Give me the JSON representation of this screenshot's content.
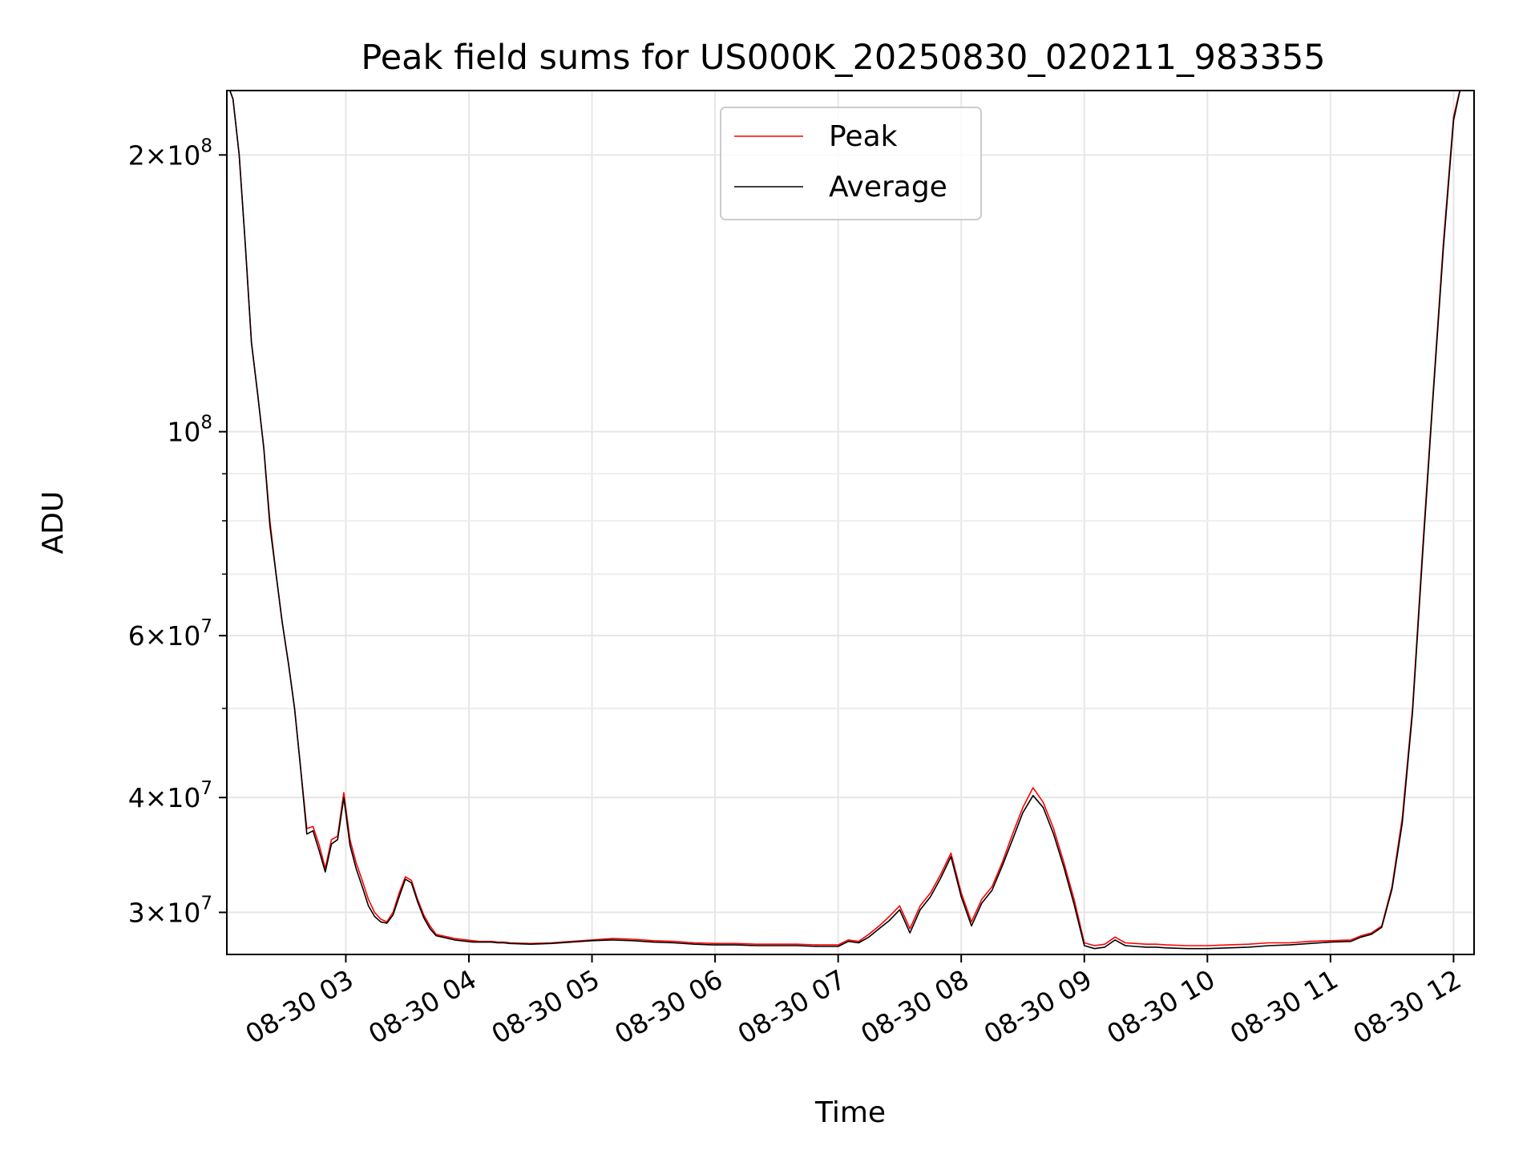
{
  "chart_data": {
    "type": "line",
    "title": "Peak field sums for US000K_20250830_020211_983355",
    "xlabel": "Time",
    "ylabel": "ADU",
    "x_axis": {
      "kind": "datetime",
      "range": [
        "2025-08-30 02:02",
        "2025-08-30 12:10"
      ],
      "ticks": [
        "2025-08-30 03:00",
        "2025-08-30 04:00",
        "2025-08-30 05:00",
        "2025-08-30 06:00",
        "2025-08-30 07:00",
        "2025-08-30 08:00",
        "2025-08-30 09:00",
        "2025-08-30 10:00",
        "2025-08-30 11:00",
        "2025-08-30 12:00"
      ],
      "tick_labels": [
        "08-30 03",
        "08-30 04",
        "08-30 05",
        "08-30 06",
        "08-30 07",
        "08-30 08",
        "08-30 09",
        "08-30 10",
        "08-30 11",
        "08-30 12"
      ]
    },
    "y_axis": {
      "scale": "log",
      "range": [
        27000000,
        235000000
      ],
      "ticks": [
        30000000,
        40000000,
        60000000,
        100000000,
        200000000
      ],
      "tick_labels": [
        {
          "mantissa": "3",
          "exp": "7"
        },
        {
          "mantissa": "4",
          "exp": "7"
        },
        {
          "mantissa": "6",
          "exp": "7"
        },
        {
          "mantissa": "",
          "exp": "8"
        },
        {
          "mantissa": "2",
          "exp": "8"
        }
      ],
      "minor_ticks": [
        50000000,
        70000000,
        80000000,
        90000000
      ]
    },
    "grid": true,
    "legend": {
      "placement": "upper-center"
    },
    "series": [
      {
        "name": "Peak",
        "color": "#ff0000",
        "x": [
          "2025-08-30 02:02",
          "2025-08-30 02:05",
          "2025-08-30 02:08",
          "2025-08-30 02:11",
          "2025-08-30 02:14",
          "2025-08-30 02:17",
          "2025-08-30 02:20",
          "2025-08-30 02:23",
          "2025-08-30 02:26",
          "2025-08-30 02:29",
          "2025-08-30 02:32",
          "2025-08-30 02:35",
          "2025-08-30 02:38",
          "2025-08-30 02:41",
          "2025-08-30 02:44",
          "2025-08-30 02:47",
          "2025-08-30 02:50",
          "2025-08-30 02:53",
          "2025-08-30 02:56",
          "2025-08-30 02:59",
          "2025-08-30 03:02",
          "2025-08-30 03:05",
          "2025-08-30 03:08",
          "2025-08-30 03:11",
          "2025-08-30 03:14",
          "2025-08-30 03:17",
          "2025-08-30 03:20",
          "2025-08-30 03:23",
          "2025-08-30 03:26",
          "2025-08-30 03:29",
          "2025-08-30 03:32",
          "2025-08-30 03:35",
          "2025-08-30 03:38",
          "2025-08-30 03:41",
          "2025-08-30 03:44",
          "2025-08-30 03:47",
          "2025-08-30 03:50",
          "2025-08-30 03:53",
          "2025-08-30 03:56",
          "2025-08-30 03:59",
          "2025-08-30 04:02",
          "2025-08-30 04:05",
          "2025-08-30 04:08",
          "2025-08-30 04:11",
          "2025-08-30 04:14",
          "2025-08-30 04:17",
          "2025-08-30 04:20",
          "2025-08-30 04:30",
          "2025-08-30 04:40",
          "2025-08-30 04:50",
          "2025-08-30 05:00",
          "2025-08-30 05:10",
          "2025-08-30 05:20",
          "2025-08-30 05:30",
          "2025-08-30 05:40",
          "2025-08-30 05:50",
          "2025-08-30 06:00",
          "2025-08-30 06:10",
          "2025-08-30 06:20",
          "2025-08-30 06:30",
          "2025-08-30 06:40",
          "2025-08-30 06:50",
          "2025-08-30 07:00",
          "2025-08-30 07:05",
          "2025-08-30 07:10",
          "2025-08-30 07:15",
          "2025-08-30 07:20",
          "2025-08-30 07:25",
          "2025-08-30 07:30",
          "2025-08-30 07:35",
          "2025-08-30 07:40",
          "2025-08-30 07:45",
          "2025-08-30 07:50",
          "2025-08-30 07:55",
          "2025-08-30 08:00",
          "2025-08-30 08:05",
          "2025-08-30 08:10",
          "2025-08-30 08:15",
          "2025-08-30 08:20",
          "2025-08-30 08:25",
          "2025-08-30 08:30",
          "2025-08-30 08:35",
          "2025-08-30 08:40",
          "2025-08-30 08:45",
          "2025-08-30 08:50",
          "2025-08-30 08:55",
          "2025-08-30 09:00",
          "2025-08-30 09:05",
          "2025-08-30 09:10",
          "2025-08-30 09:15",
          "2025-08-30 09:20",
          "2025-08-30 09:25",
          "2025-08-30 09:30",
          "2025-08-30 09:35",
          "2025-08-30 09:40",
          "2025-08-30 09:50",
          "2025-08-30 10:00",
          "2025-08-30 10:10",
          "2025-08-30 10:20",
          "2025-08-30 10:30",
          "2025-08-30 10:40",
          "2025-08-30 10:50",
          "2025-08-30 11:00",
          "2025-08-30 11:10",
          "2025-08-30 11:15",
          "2025-08-30 11:20",
          "2025-08-30 11:25",
          "2025-08-30 11:30",
          "2025-08-30 11:35",
          "2025-08-30 11:40",
          "2025-08-30 11:45",
          "2025-08-30 11:50",
          "2025-08-30 11:55",
          "2025-08-30 12:00",
          "2025-08-30 12:04",
          "2025-08-30 12:08",
          "2025-08-30 12:10"
        ],
        "y": [
          240000000,
          230000000,
          200000000,
          160000000,
          125000000,
          110000000,
          96000000,
          80000000,
          70000000,
          62000000,
          56000000,
          50000000,
          43000000,
          37000000,
          37200000,
          35500000,
          33500000,
          36000000,
          36300000,
          40500000,
          36000000,
          34000000,
          32500000,
          31000000,
          30000000,
          29500000,
          29300000,
          30000000,
          31500000,
          32800000,
          32500000,
          31000000,
          29800000,
          29000000,
          28400000,
          28300000,
          28200000,
          28100000,
          28050000,
          28000000,
          27950000,
          27900000,
          27900000,
          27900000,
          27850000,
          27850000,
          27800000,
          27750000,
          27800000,
          27900000,
          28000000,
          28100000,
          28050000,
          27950000,
          27900000,
          27800000,
          27750000,
          27750000,
          27700000,
          27700000,
          27700000,
          27650000,
          27650000,
          28000000,
          27900000,
          28400000,
          29000000,
          29700000,
          30500000,
          28800000,
          30500000,
          31500000,
          33000000,
          34800000,
          31500000,
          29300000,
          31000000,
          32000000,
          34000000,
          36500000,
          39000000,
          41000000,
          39500000,
          37000000,
          34000000,
          31000000,
          27800000,
          27600000,
          27700000,
          28200000,
          27800000,
          27750000,
          27700000,
          27700000,
          27650000,
          27600000,
          27600000,
          27650000,
          27700000,
          27800000,
          27800000,
          27900000,
          27950000,
          28000000,
          28300000,
          28500000,
          29000000,
          32000000,
          38000000,
          50000000,
          75000000,
          110000000,
          160000000,
          220000000,
          240000000,
          240000000,
          240000000
        ]
      },
      {
        "name": "Average",
        "color": "#000000",
        "x": [
          "2025-08-30 02:02",
          "2025-08-30 02:05",
          "2025-08-30 02:08",
          "2025-08-30 02:11",
          "2025-08-30 02:14",
          "2025-08-30 02:17",
          "2025-08-30 02:20",
          "2025-08-30 02:23",
          "2025-08-30 02:26",
          "2025-08-30 02:29",
          "2025-08-30 02:32",
          "2025-08-30 02:35",
          "2025-08-30 02:38",
          "2025-08-30 02:41",
          "2025-08-30 02:44",
          "2025-08-30 02:47",
          "2025-08-30 02:50",
          "2025-08-30 02:53",
          "2025-08-30 02:56",
          "2025-08-30 02:59",
          "2025-08-30 03:02",
          "2025-08-30 03:05",
          "2025-08-30 03:08",
          "2025-08-30 03:11",
          "2025-08-30 03:14",
          "2025-08-30 03:17",
          "2025-08-30 03:20",
          "2025-08-30 03:23",
          "2025-08-30 03:26",
          "2025-08-30 03:29",
          "2025-08-30 03:32",
          "2025-08-30 03:35",
          "2025-08-30 03:38",
          "2025-08-30 03:41",
          "2025-08-30 03:44",
          "2025-08-30 03:47",
          "2025-08-30 03:50",
          "2025-08-30 03:53",
          "2025-08-30 03:56",
          "2025-08-30 03:59",
          "2025-08-30 04:02",
          "2025-08-30 04:05",
          "2025-08-30 04:08",
          "2025-08-30 04:11",
          "2025-08-30 04:14",
          "2025-08-30 04:17",
          "2025-08-30 04:20",
          "2025-08-30 04:30",
          "2025-08-30 04:40",
          "2025-08-30 04:50",
          "2025-08-30 05:00",
          "2025-08-30 05:10",
          "2025-08-30 05:20",
          "2025-08-30 05:30",
          "2025-08-30 05:40",
          "2025-08-30 05:50",
          "2025-08-30 06:00",
          "2025-08-30 06:10",
          "2025-08-30 06:20",
          "2025-08-30 06:30",
          "2025-08-30 06:40",
          "2025-08-30 06:50",
          "2025-08-30 07:00",
          "2025-08-30 07:05",
          "2025-08-30 07:10",
          "2025-08-30 07:15",
          "2025-08-30 07:20",
          "2025-08-30 07:25",
          "2025-08-30 07:30",
          "2025-08-30 07:35",
          "2025-08-30 07:40",
          "2025-08-30 07:45",
          "2025-08-30 07:50",
          "2025-08-30 07:55",
          "2025-08-30 08:00",
          "2025-08-30 08:05",
          "2025-08-30 08:10",
          "2025-08-30 08:15",
          "2025-08-30 08:20",
          "2025-08-30 08:25",
          "2025-08-30 08:30",
          "2025-08-30 08:35",
          "2025-08-30 08:40",
          "2025-08-30 08:45",
          "2025-08-30 08:50",
          "2025-08-30 08:55",
          "2025-08-30 09:00",
          "2025-08-30 09:05",
          "2025-08-30 09:10",
          "2025-08-30 09:15",
          "2025-08-30 09:20",
          "2025-08-30 09:25",
          "2025-08-30 09:30",
          "2025-08-30 09:35",
          "2025-08-30 09:40",
          "2025-08-30 09:50",
          "2025-08-30 10:00",
          "2025-08-30 10:10",
          "2025-08-30 10:20",
          "2025-08-30 10:30",
          "2025-08-30 10:40",
          "2025-08-30 10:50",
          "2025-08-30 11:00",
          "2025-08-30 11:10",
          "2025-08-30 11:15",
          "2025-08-30 11:20",
          "2025-08-30 11:25",
          "2025-08-30 11:30",
          "2025-08-30 11:35",
          "2025-08-30 11:40",
          "2025-08-30 11:45",
          "2025-08-30 11:50",
          "2025-08-30 11:55",
          "2025-08-30 12:00",
          "2025-08-30 12:04",
          "2025-08-30 12:08",
          "2025-08-30 12:10"
        ],
        "y": [
          240000000,
          230000000,
          200000000,
          160000000,
          125000000,
          110000000,
          96000000,
          79000000,
          70000000,
          62000000,
          56000000,
          50000000,
          43000000,
          36500000,
          36800000,
          35000000,
          33200000,
          35600000,
          36000000,
          40000000,
          35500000,
          33500000,
          32000000,
          30500000,
          29700000,
          29300000,
          29200000,
          29800000,
          31200000,
          32600000,
          32300000,
          30800000,
          29600000,
          28800000,
          28300000,
          28200000,
          28100000,
          28000000,
          27950000,
          27900000,
          27850000,
          27850000,
          27850000,
          27850000,
          27800000,
          27800000,
          27750000,
          27700000,
          27750000,
          27850000,
          27950000,
          28000000,
          27950000,
          27850000,
          27800000,
          27700000,
          27650000,
          27650000,
          27600000,
          27600000,
          27600000,
          27550000,
          27550000,
          27900000,
          27800000,
          28200000,
          28800000,
          29400000,
          30200000,
          28500000,
          30200000,
          31200000,
          32700000,
          34500000,
          31200000,
          29000000,
          30700000,
          31700000,
          33700000,
          36000000,
          38500000,
          40200000,
          39000000,
          36500000,
          33600000,
          30600000,
          27600000,
          27400000,
          27500000,
          28000000,
          27600000,
          27550000,
          27500000,
          27500000,
          27450000,
          27400000,
          27400000,
          27450000,
          27500000,
          27600000,
          27650000,
          27750000,
          27850000,
          27900000,
          28200000,
          28400000,
          28900000,
          31800000,
          37500000,
          49500000,
          74000000,
          109000000,
          158000000,
          218000000,
          240000000,
          240000000,
          240000000
        ]
      }
    ]
  }
}
